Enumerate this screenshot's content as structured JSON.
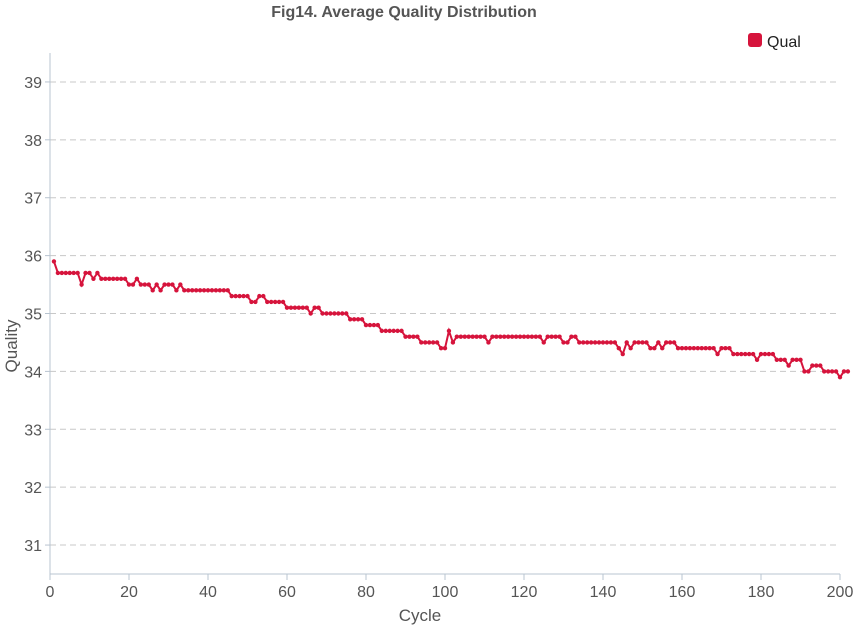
{
  "chart_data": {
    "type": "line",
    "title": "Fig14. Average Quality Distribution",
    "xlabel": "Cycle",
    "ylabel": "Quality",
    "xlim": [
      0,
      200
    ],
    "ylim": [
      30.5,
      39.5
    ],
    "xticks": [
      0,
      20,
      40,
      60,
      80,
      100,
      120,
      140,
      160,
      180,
      200
    ],
    "yticks": [
      31,
      32,
      33,
      34,
      35,
      36,
      37,
      38,
      39
    ],
    "grid": "horizontal-dashed",
    "legend": {
      "placement": "top-right",
      "entries": [
        "Qual"
      ]
    },
    "series": [
      {
        "name": "Qual",
        "color": "#d6143c",
        "x_start": 1,
        "x_step": 1,
        "values": [
          35.9,
          35.7,
          35.7,
          35.7,
          35.7,
          35.7,
          35.7,
          35.5,
          35.7,
          35.7,
          35.6,
          35.7,
          35.6,
          35.6,
          35.6,
          35.6,
          35.6,
          35.6,
          35.6,
          35.5,
          35.5,
          35.6,
          35.5,
          35.5,
          35.5,
          35.4,
          35.5,
          35.4,
          35.5,
          35.5,
          35.5,
          35.4,
          35.5,
          35.4,
          35.4,
          35.4,
          35.4,
          35.4,
          35.4,
          35.4,
          35.4,
          35.4,
          35.4,
          35.4,
          35.4,
          35.3,
          35.3,
          35.3,
          35.3,
          35.3,
          35.2,
          35.2,
          35.3,
          35.3,
          35.2,
          35.2,
          35.2,
          35.2,
          35.2,
          35.1,
          35.1,
          35.1,
          35.1,
          35.1,
          35.1,
          35.0,
          35.1,
          35.1,
          35.0,
          35.0,
          35.0,
          35.0,
          35.0,
          35.0,
          35.0,
          34.9,
          34.9,
          34.9,
          34.9,
          34.8,
          34.8,
          34.8,
          34.8,
          34.7,
          34.7,
          34.7,
          34.7,
          34.7,
          34.7,
          34.6,
          34.6,
          34.6,
          34.6,
          34.5,
          34.5,
          34.5,
          34.5,
          34.5,
          34.4,
          34.4,
          34.7,
          34.5,
          34.6,
          34.6,
          34.6,
          34.6,
          34.6,
          34.6,
          34.6,
          34.6,
          34.5,
          34.6,
          34.6,
          34.6,
          34.6,
          34.6,
          34.6,
          34.6,
          34.6,
          34.6,
          34.6,
          34.6,
          34.6,
          34.6,
          34.5,
          34.6,
          34.6,
          34.6,
          34.6,
          34.5,
          34.5,
          34.6,
          34.6,
          34.5,
          34.5,
          34.5,
          34.5,
          34.5,
          34.5,
          34.5,
          34.5,
          34.5,
          34.5,
          34.4,
          34.3,
          34.5,
          34.4,
          34.5,
          34.5,
          34.5,
          34.5,
          34.4,
          34.4,
          34.5,
          34.4,
          34.5,
          34.5,
          34.5,
          34.4,
          34.4,
          34.4,
          34.4,
          34.4,
          34.4,
          34.4,
          34.4,
          34.4,
          34.4,
          34.3,
          34.4,
          34.4,
          34.4,
          34.3,
          34.3,
          34.3,
          34.3,
          34.3,
          34.3,
          34.2,
          34.3,
          34.3,
          34.3,
          34.3,
          34.2,
          34.2,
          34.2,
          34.1,
          34.2,
          34.2,
          34.2,
          34.0,
          34.0,
          34.1,
          34.1,
          34.1,
          34.0,
          34.0,
          34.0,
          34.0,
          33.9,
          34.0,
          34.0
        ]
      }
    ]
  }
}
